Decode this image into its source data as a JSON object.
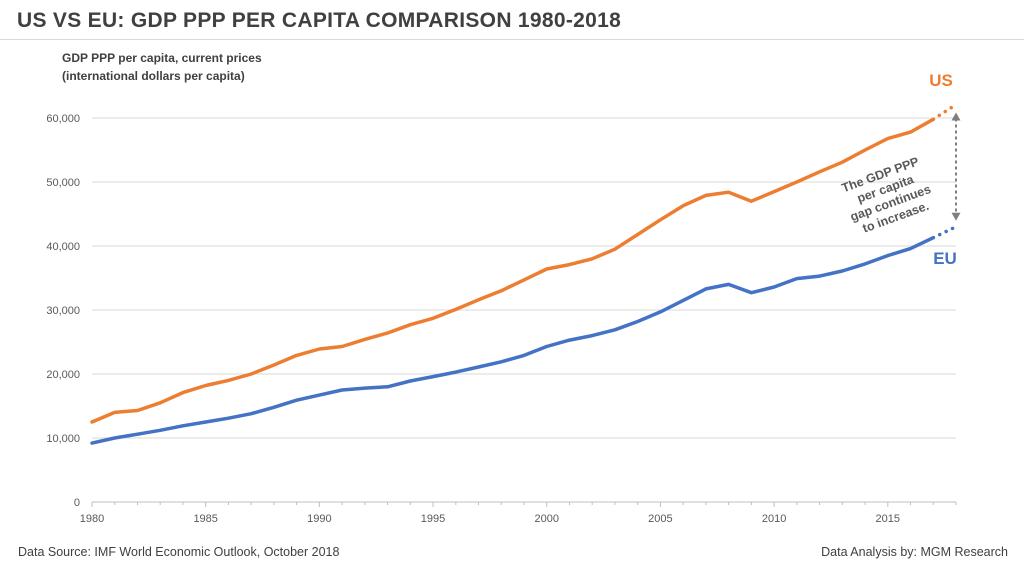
{
  "title": "US VS EU: GDP PPP PER CAPITA COMPARISON 1980-2018",
  "footer": {
    "source": "Data Source: IMF World Economic Outlook, October 2018",
    "analysis": "Data Analysis by: MGM Research"
  },
  "colors": {
    "us": "#ED7D31",
    "eu": "#4472C4",
    "text": "#404040",
    "grid": "#d9d9d9"
  },
  "chart_data": {
    "type": "line",
    "title": "US VS EU: GDP PPP PER CAPITA COMPARISON 1980-2018",
    "ylabel_lines": [
      "GDP PPP per capita, current prices",
      "(international dollars per capita)"
    ],
    "xlabel": "",
    "x": [
      1980,
      1981,
      1982,
      1983,
      1984,
      1985,
      1986,
      1987,
      1988,
      1989,
      1990,
      1991,
      1992,
      1993,
      1994,
      1995,
      1996,
      1997,
      1998,
      1999,
      2000,
      2001,
      2002,
      2003,
      2004,
      2005,
      2006,
      2007,
      2008,
      2009,
      2010,
      2011,
      2012,
      2013,
      2014,
      2015,
      2016,
      2017,
      2018
    ],
    "xlim": [
      1980,
      2018
    ],
    "ylim": [
      0,
      60000
    ],
    "x_ticks": [
      1980,
      1985,
      1990,
      1995,
      2000,
      2005,
      2010,
      2015
    ],
    "y_ticks": [
      0,
      10000,
      20000,
      30000,
      40000,
      50000,
      60000
    ],
    "y_tick_labels": [
      "0",
      "10,000",
      "20,000",
      "30,000",
      "40,000",
      "50,000",
      "60,000"
    ],
    "grid": true,
    "projected_from": 2017,
    "series": [
      {
        "name": "US",
        "label": "US",
        "values": [
          12500,
          14000,
          14300,
          15500,
          17100,
          18200,
          19000,
          20000,
          21400,
          22900,
          23900,
          24300,
          25400,
          26400,
          27700,
          28700,
          30100,
          31600,
          33000,
          34700,
          36400,
          37100,
          38000,
          39500,
          41800,
          44100,
          46300,
          47900,
          48400,
          47000,
          48500,
          50000,
          51600,
          53100,
          55000,
          56800,
          57800,
          59800,
          62100
        ]
      },
      {
        "name": "EU",
        "label": "EU",
        "values": [
          9200,
          10000,
          10600,
          11200,
          11900,
          12500,
          13100,
          13800,
          14800,
          15900,
          16700,
          17500,
          17800,
          18000,
          18900,
          19600,
          20300,
          21100,
          21900,
          22900,
          24300,
          25300,
          26000,
          26900,
          28200,
          29700,
          31500,
          33300,
          34000,
          32700,
          33600,
          34900,
          35300,
          36100,
          37200,
          38500,
          39600,
          41300,
          43000
        ]
      }
    ],
    "annotations": [
      {
        "text_lines": [
          "The GDP PPP",
          "per capita",
          "gap continues",
          "to increase."
        ]
      }
    ]
  }
}
